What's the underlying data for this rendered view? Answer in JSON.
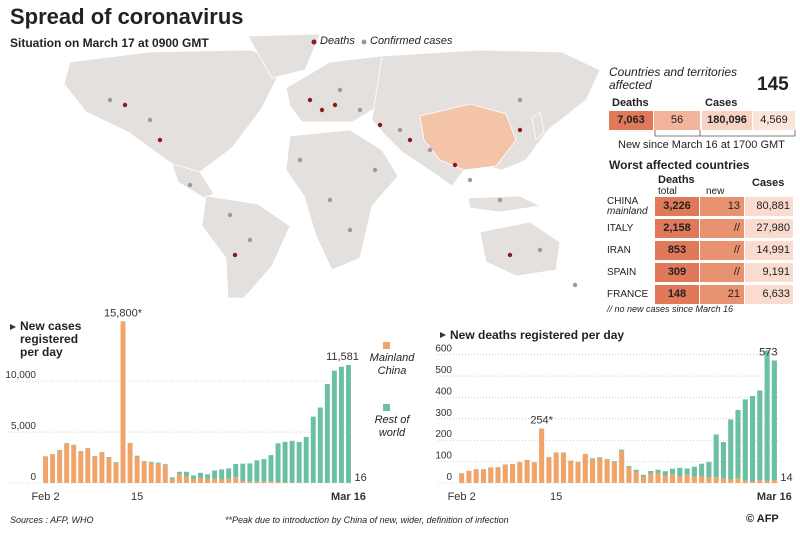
{
  "header": {
    "title": "Spread of coronavirus",
    "subtitle": "Situation on March 17 at 0900 GMT"
  },
  "map_legend": [
    "Deaths",
    "Confirmed cases"
  ],
  "summary": {
    "countries_label": "Countries and territories affected",
    "countries_count": "145",
    "deaths_label": "Deaths",
    "cases_label": "Cases",
    "deaths": [
      "7,063",
      "56"
    ],
    "cases": [
      "180,096",
      "4,569"
    ],
    "note": "New since March 16 at 1700 GMT"
  },
  "worst": {
    "title": "Worst affected countries",
    "deaths_header": "Deaths",
    "total_header": "total",
    "new_header": "new",
    "cases_header": "Cases",
    "rows": [
      {
        "country": "CHINA",
        "sub": "mainland",
        "deaths": "3,226",
        "new": "13",
        "cases": "80,881"
      },
      {
        "country": "ITALY",
        "deaths": "2,158",
        "new": "//",
        "cases": "27,980"
      },
      {
        "country": "IRAN",
        "deaths": "853",
        "new": "//",
        "cases": "14,991"
      },
      {
        "country": "SPAIN",
        "deaths": "309",
        "new": "//",
        "cases": "9,191"
      },
      {
        "country": "FRANCE",
        "deaths": "148",
        "new": "21",
        "cases": "6,633"
      }
    ],
    "footnote": "// no new cases since March 16"
  },
  "chart_data": [
    {
      "type": "bar",
      "stacked": true,
      "title": "New cases registered per day",
      "legend": true,
      "grid": true,
      "categories": [
        "Feb 2",
        null,
        null,
        null,
        null,
        null,
        null,
        null,
        null,
        null,
        null,
        null,
        null,
        "15",
        null,
        null,
        null,
        null,
        null,
        null,
        null,
        null,
        null,
        null,
        null,
        null,
        null,
        null,
        null,
        null,
        null,
        null,
        null,
        null,
        null,
        null,
        null,
        null,
        null,
        null,
        null,
        null,
        null,
        "Mar 16"
      ],
      "series": [
        {
          "name": "Mainland China",
          "color": "#f0a46a",
          "values": [
            2600,
            2800,
            3200,
            3900,
            3700,
            3100,
            3400,
            2600,
            3000,
            2500,
            2000,
            15800,
            3900,
            2600,
            2100,
            2000,
            1900,
            1750,
            400,
            900,
            650,
            400,
            500,
            400,
            430,
            330,
            430,
            570,
            200,
            125,
            120,
            140,
            140,
            100,
            45,
            40,
            20,
            25,
            15,
            10,
            10,
            20,
            10,
            16
          ]
        },
        {
          "name": "Rest of world",
          "color": "#6bbfa3",
          "values": [
            20,
            30,
            40,
            30,
            50,
            40,
            40,
            60,
            40,
            50,
            50,
            60,
            40,
            80,
            50,
            80,
            100,
            90,
            150,
            200,
            450,
            350,
            500,
            450,
            800,
            1000,
            1000,
            1300,
            1700,
            1800,
            2100,
            2200,
            2600,
            3800,
            4000,
            4100,
            4000,
            4500,
            6500,
            7400,
            9700,
            11000,
            11400,
            11565
          ]
        }
      ],
      "ylim": [
        0,
        16000
      ],
      "yticks": [
        0,
        {
          "value": 5000,
          "label": "5,000"
        },
        {
          "value": 10000,
          "label": "10,000"
        }
      ],
      "annotations": [
        "15,800*",
        "11,581",
        "16"
      ]
    },
    {
      "type": "bar",
      "stacked": true,
      "title": "New deaths registered per day",
      "legend": false,
      "grid": true,
      "categories": [
        "Feb 2",
        null,
        null,
        null,
        null,
        null,
        null,
        null,
        null,
        null,
        null,
        null,
        null,
        "15",
        null,
        null,
        null,
        null,
        null,
        null,
        null,
        null,
        null,
        null,
        null,
        null,
        null,
        null,
        null,
        null,
        null,
        null,
        null,
        null,
        null,
        null,
        null,
        null,
        null,
        null,
        null,
        null,
        null,
        "Mar 16"
      ],
      "series": [
        {
          "name": "Mainland China",
          "color": "#f0a46a",
          "values": [
            45,
            57,
            64,
            65,
            73,
            73,
            86,
            89,
            97,
            108,
            97,
            254,
            121,
            143,
            142,
            105,
            98,
            136,
            114,
            118,
            109,
            97,
            150,
            71,
            52,
            29,
            44,
            47,
            35,
            42,
            31,
            38,
            31,
            30,
            28,
            27,
            22,
            17,
            22,
            11,
            7,
            13,
            10,
            14
          ]
        },
        {
          "name": "Rest of world",
          "color": "#6bbfa3",
          "values": [
            1,
            0,
            1,
            0,
            0,
            1,
            1,
            0,
            1,
            0,
            0,
            1,
            1,
            0,
            1,
            0,
            1,
            0,
            2,
            3,
            3,
            5,
            6,
            8,
            10,
            9,
            12,
            15,
            20,
            25,
            40,
            30,
            45,
            60,
            70,
            200,
            170,
            280,
            320,
            380,
            400,
            420,
            610,
            559
          ]
        }
      ],
      "ylim": [
        0,
        650
      ],
      "yticks": [
        0,
        100,
        200,
        300,
        400,
        500,
        600
      ],
      "annotations": [
        "254*",
        "573",
        "14"
      ]
    }
  ],
  "footer": {
    "sources": "Sources : AFP, WHO",
    "note": "**Peak due to introduction by China of new, wider, definition of infection",
    "logo": "© AFP"
  }
}
